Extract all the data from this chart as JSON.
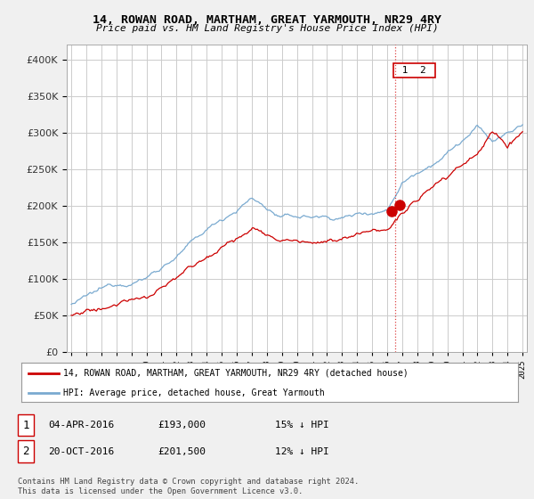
{
  "title": "14, ROWAN ROAD, MARTHAM, GREAT YARMOUTH, NR29 4RY",
  "subtitle": "Price paid vs. HM Land Registry's House Price Index (HPI)",
  "legend_label_red": "14, ROWAN ROAD, MARTHAM, GREAT YARMOUTH, NR29 4RY (detached house)",
  "legend_label_blue": "HPI: Average price, detached house, Great Yarmouth",
  "annotation1_num": "1",
  "annotation1_date": "04-APR-2016",
  "annotation1_price": "£193,000",
  "annotation1_hpi": "15% ↓ HPI",
  "annotation2_num": "2",
  "annotation2_date": "20-OCT-2016",
  "annotation2_price": "£201,500",
  "annotation2_hpi": "12% ↓ HPI",
  "footnote": "Contains HM Land Registry data © Crown copyright and database right 2024.\nThis data is licensed under the Open Government Licence v3.0.",
  "ylim": [
    0,
    420000
  ],
  "yticks": [
    0,
    50000,
    100000,
    150000,
    200000,
    250000,
    300000,
    350000,
    400000
  ],
  "background_color": "#f0f0f0",
  "plot_bg_color": "#ffffff",
  "grid_color": "#cccccc",
  "red_color": "#cc0000",
  "blue_color": "#7aaad0",
  "marker1_x": 2016.27,
  "marker2_x": 2016.8,
  "marker1_y": 193000,
  "marker2_y": 201500,
  "vline_x": 2016.55,
  "xlim_left": 1994.7,
  "xlim_right": 2025.3
}
